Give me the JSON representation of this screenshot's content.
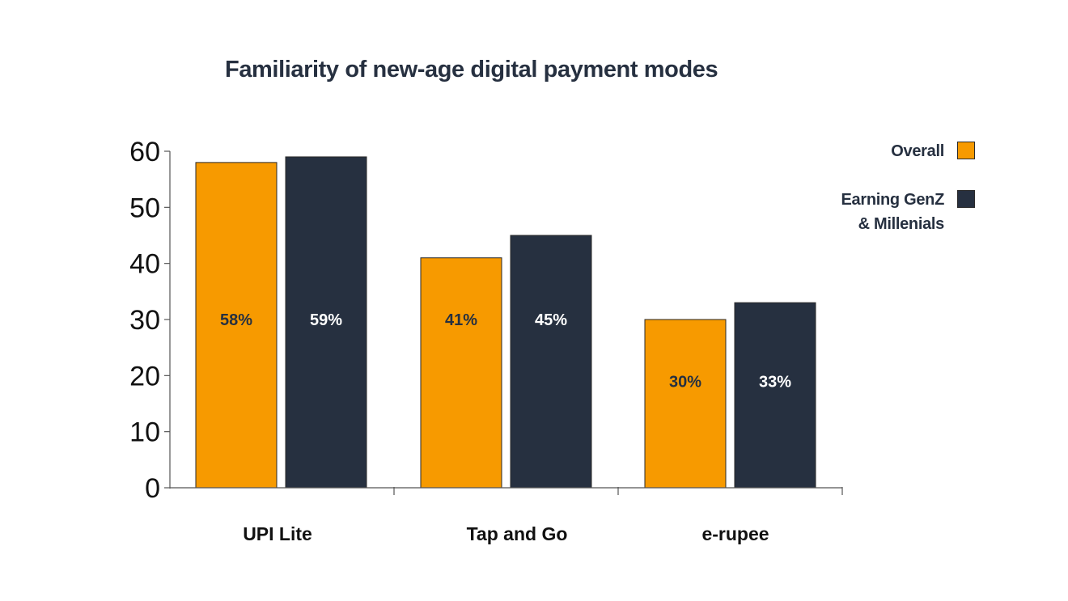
{
  "chart_data": {
    "type": "bar",
    "title": "Familiarity of new-age digital payment modes",
    "categories": [
      "UPI Lite",
      "Tap and Go",
      "e-rupee"
    ],
    "series": [
      {
        "name": "Overall",
        "color": "#F79A00",
        "label_color": "#263040",
        "values": [
          58,
          41,
          30
        ],
        "labels": [
          "58%",
          "41%",
          "30%"
        ]
      },
      {
        "name": "Earning GenZ\n& Millenials",
        "color": "#263040",
        "label_color": "#FFFFFF",
        "values": [
          59,
          45,
          33
        ],
        "labels": [
          "59%",
          "45%",
          "33%"
        ]
      }
    ],
    "ylim": [
      0,
      60
    ],
    "yticks": [
      "0",
      "10",
      "20",
      "30",
      "40",
      "50",
      "60"
    ],
    "xlabel": "",
    "ylabel": "",
    "legend_position": "top-right",
    "grid": false
  }
}
